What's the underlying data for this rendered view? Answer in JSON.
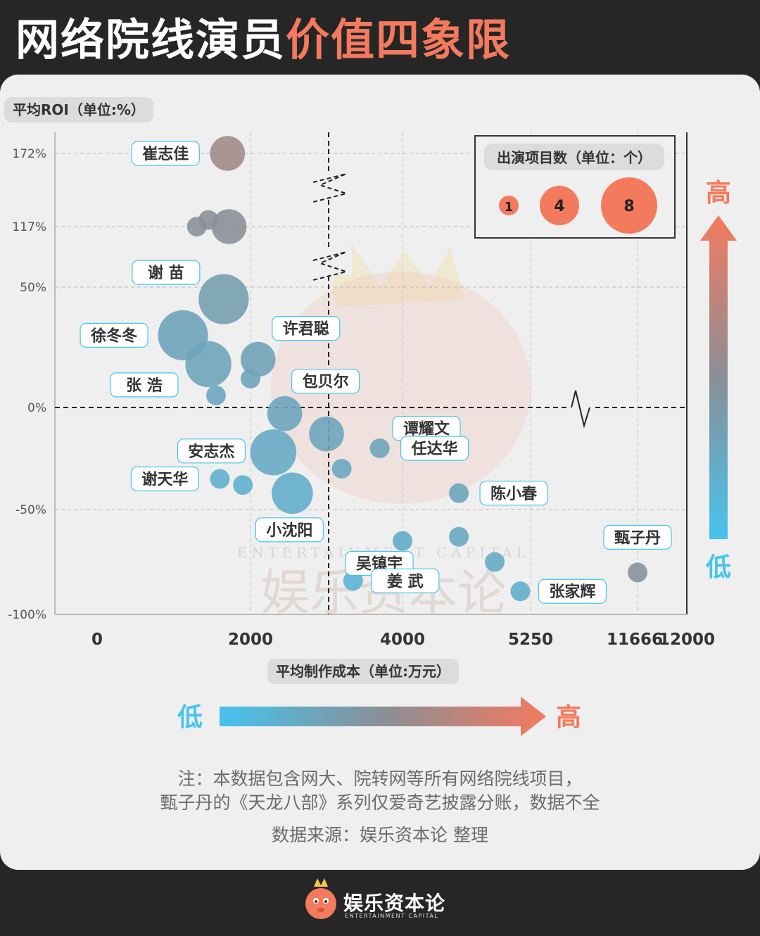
{
  "title": {
    "part1": "网络院线演员",
    "part2": "价值四象限"
  },
  "chart_data": {
    "type": "scatter",
    "ylabel": "平均ROI（单位:%）",
    "xlabel": "平均制作成本（单位:万元）",
    "x_ticks": [
      "0",
      "2000",
      "4000",
      "5250",
      "11666",
      "12000"
    ],
    "y_ticks": [
      "172%",
      "117%",
      "50%",
      "0%",
      "-50%",
      "-100%"
    ],
    "size_legend": {
      "title": "出演项目数（单位：个）",
      "values": [
        "1",
        "4",
        "8"
      ]
    },
    "y_arrow": {
      "high": "高",
      "low": "低"
    },
    "x_arrow": {
      "low": "低",
      "high": "高"
    },
    "points": [
      {
        "label": "崔志佳",
        "cost": 1700,
        "roi": 172,
        "projects": 2
      },
      {
        "label": "",
        "cost": 1450,
        "roi": 122,
        "projects": 1
      },
      {
        "label": "",
        "cost": 1300,
        "roi": 117,
        "projects": 1
      },
      {
        "label": "",
        "cost": 1720,
        "roi": 117,
        "projects": 2
      },
      {
        "label": "谢 苗",
        "cost": 1650,
        "roi": 45,
        "projects": 5
      },
      {
        "label": "徐冬冬",
        "cost": 1120,
        "roi": 30,
        "projects": 5
      },
      {
        "label": "",
        "cost": 1450,
        "roi": 18,
        "projects": 4
      },
      {
        "label": "许君聪",
        "cost": 2100,
        "roi": 20,
        "projects": 2
      },
      {
        "label": "",
        "cost": 2000,
        "roi": 12,
        "projects": 1
      },
      {
        "label": "张 浩",
        "cost": 1550,
        "roi": 5,
        "projects": 1
      },
      {
        "label": "包贝尔",
        "cost": 2450,
        "roi": -3,
        "projects": 2
      },
      {
        "label": "谭耀文",
        "cost": 3000,
        "roi": -13,
        "projects": 2
      },
      {
        "label": "安志杰",
        "cost": 2300,
        "roi": -22,
        "projects": 4
      },
      {
        "label": "任达华",
        "cost": 3700,
        "roi": -20,
        "projects": 1
      },
      {
        "label": "",
        "cost": 3200,
        "roi": -30,
        "projects": 1
      },
      {
        "label": "谢天华",
        "cost": 1600,
        "roi": -35,
        "projects": 1
      },
      {
        "label": "",
        "cost": 1900,
        "roi": -38,
        "projects": 1
      },
      {
        "label": "小沈阳",
        "cost": 2550,
        "roi": -42,
        "projects": 3
      },
      {
        "label": "陈小春",
        "cost": 4550,
        "roi": -42,
        "projects": 1
      },
      {
        "label": "",
        "cost": 4000,
        "roi": -65,
        "projects": 1
      },
      {
        "label": "",
        "cost": 4550,
        "roi": -63,
        "projects": 1
      },
      {
        "label": "吴镇宇",
        "cost": 4900,
        "roi": -75,
        "projects": 1
      },
      {
        "label": "姜 武",
        "cost": 3350,
        "roi": -84,
        "projects": 1
      },
      {
        "label": "张家辉",
        "cost": 5150,
        "roi": -89,
        "projects": 1
      },
      {
        "label": "甄子丹",
        "cost": 11666,
        "roi": -80,
        "projects": 1
      }
    ]
  },
  "notes": {
    "line1": "注：本数据包含网大、院转网等所有网络院线项目，",
    "line2": "甄子丹的《天龙八部》系列仅爱奇艺披露分账，数据不全",
    "source": "数据来源：娱乐资本论 整理"
  },
  "brand": {
    "cn": "娱乐资本论",
    "en": "ENTERTAINMENT CAPITAL",
    "watermark_cn": "娱乐资本论",
    "watermark_en": "ENTERTAINMENT CAPITAL"
  },
  "colors": {
    "high": "#f47a5e",
    "mid": "#8a8f97",
    "low": "#46c3ee",
    "background": "#262626",
    "card": "#efefef"
  }
}
